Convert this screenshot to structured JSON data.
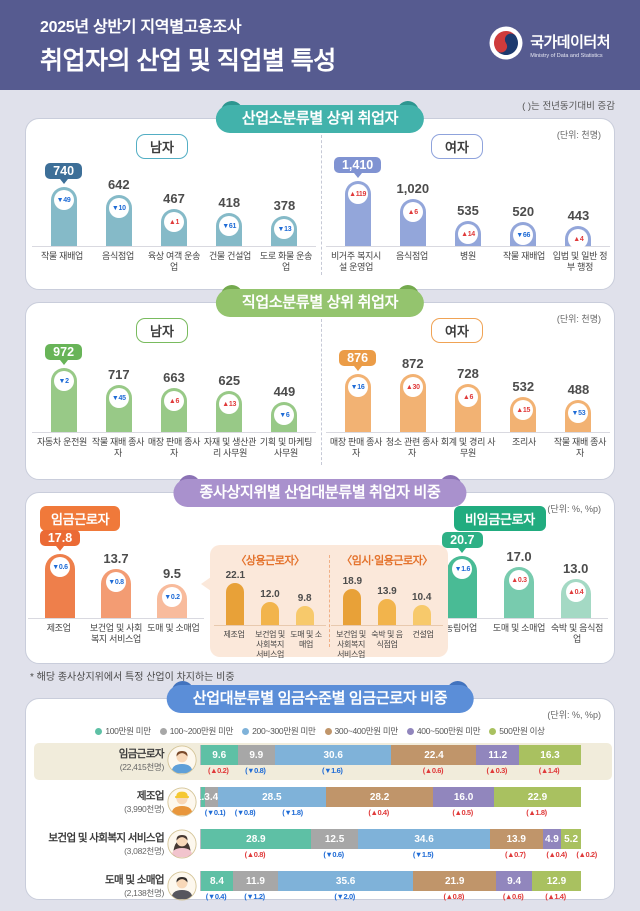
{
  "header": {
    "subtitle": "2025년 상반기 지역별고용조사",
    "title": "취업자의 산업 및 직업별 특성",
    "logo_name": "국가데이터처",
    "logo_subname": "Ministry of Data and Statistics"
  },
  "note": "(  )는 전년동기대비 증감",
  "colors": {
    "up": "#e03a3a",
    "down": "#1e6bd6",
    "header_bg": "#565b90",
    "page_bg": "#e0e1eb",
    "highlight_row": "#f1ecdb",
    "banners": {
      "teal": "#42b2ab",
      "green": "#94c46e",
      "purple": "#a991cd",
      "blue": "#5b8ed8"
    },
    "themes": {
      "men1": {
        "bars": [
          "#85bac8"
        ],
        "badge": "#3d6f98"
      },
      "women1": {
        "bars": [
          "#93a6da"
        ],
        "badge": "#8093d2"
      },
      "men2": {
        "bars": [
          "#98c987"
        ],
        "badge": "#68b458"
      },
      "women2": {
        "bars": [
          "#f2b273"
        ],
        "badge": "#eb9c47"
      },
      "wage": {
        "bars": [
          "#ee7f4b",
          "#f39c73",
          "#f8bb9c"
        ],
        "badge": "#eb6a35"
      },
      "nonwage": {
        "bars": [
          "#49bb95",
          "#78cbae",
          "#a4d9c4"
        ],
        "badge": "#2eb186"
      },
      "sub": {
        "bars": [
          "#e8a138",
          "#f2b44c",
          "#f7c96b"
        ],
        "badge": "#e8a138"
      }
    }
  },
  "chart_data": [
    {
      "id": "industry-top",
      "type": "bar",
      "title": "산업소분류별 상위 취업자",
      "unit": "(단위: 천명)",
      "groups": [
        {
          "label": "남자",
          "theme": "men1",
          "categories": [
            "작물 재배업",
            "음식점업",
            "육상 여객 운송업",
            "건물 건설업",
            "도로 화물 운송업"
          ],
          "values": [
            740,
            642,
            467,
            418,
            378
          ],
          "value_labels": [
            "740",
            "642",
            "467",
            "418",
            "378"
          ],
          "changes": [
            {
              "v": "49",
              "dir": "down"
            },
            {
              "v": "10",
              "dir": "down"
            },
            {
              "v": "1",
              "dir": "up"
            },
            {
              "v": "61",
              "dir": "down"
            },
            {
              "v": "13",
              "dir": "down"
            }
          ],
          "badge_index": 0
        },
        {
          "label": "여자",
          "theme": "women1",
          "categories": [
            "비거주 복지시설 운영업",
            "음식점업",
            "병원",
            "작물 재배업",
            "입법 및 일반 정부 행정"
          ],
          "values": [
            1410,
            1020,
            535,
            520,
            443
          ],
          "value_labels": [
            "1,410",
            "1,020",
            "535",
            "520",
            "443"
          ],
          "changes": [
            {
              "v": "119",
              "dir": "up"
            },
            {
              "v": "6",
              "dir": "up"
            },
            {
              "v": "14",
              "dir": "up"
            },
            {
              "v": "66",
              "dir": "down"
            },
            {
              "v": "4",
              "dir": "up"
            }
          ],
          "badge_index": 0
        }
      ]
    },
    {
      "id": "occupation-top",
      "type": "bar",
      "title": "직업소분류별 상위 취업자",
      "unit": "(단위: 천명)",
      "groups": [
        {
          "label": "남자",
          "theme": "men2",
          "categories": [
            "자동차 운전원",
            "작물 재배 종사자",
            "매장 판매 종사자",
            "자재 및 생산관리 사무원",
            "기획 및 마케팅 사무원"
          ],
          "values": [
            972,
            717,
            663,
            625,
            449
          ],
          "value_labels": [
            "972",
            "717",
            "663",
            "625",
            "449"
          ],
          "changes": [
            {
              "v": "2",
              "dir": "down"
            },
            {
              "v": "45",
              "dir": "down"
            },
            {
              "v": "6",
              "dir": "up"
            },
            {
              "v": "13",
              "dir": "up"
            },
            {
              "v": "6",
              "dir": "down"
            }
          ],
          "badge_index": 0
        },
        {
          "label": "여자",
          "theme": "women2",
          "categories": [
            "매장 판매 종사자",
            "청소 관련 종사자",
            "회계 및 경리 사무원",
            "조리사",
            "작물 재배 종사자"
          ],
          "values": [
            876,
            872,
            728,
            532,
            488
          ],
          "value_labels": [
            "876",
            "872",
            "728",
            "532",
            "488"
          ],
          "changes": [
            {
              "v": "16",
              "dir": "down"
            },
            {
              "v": "30",
              "dir": "up"
            },
            {
              "v": "6",
              "dir": "up"
            },
            {
              "v": "15",
              "dir": "up"
            },
            {
              "v": "53",
              "dir": "down"
            }
          ],
          "badge_index": 0
        }
      ]
    },
    {
      "id": "status-share",
      "type": "bar",
      "title": "종사상지위별 산업대분류별 취업자 비중",
      "unit": "(단위: %, %p)",
      "footnote": "* 해당 종사상지위에서 특정 산업이 차지하는 비중",
      "groups": [
        {
          "label": "임금근로자",
          "theme": "wage",
          "categories": [
            "제조업",
            "보건업 및 사회복지 서비스업",
            "도매 및 소매업"
          ],
          "values": [
            17.8,
            13.7,
            9.5
          ],
          "value_labels": [
            "17.8",
            "13.7",
            "9.5"
          ],
          "changes": [
            {
              "v": "0.6",
              "dir": "down"
            },
            {
              "v": "0.8",
              "dir": "down"
            },
            {
              "v": "0.2",
              "dir": "down"
            }
          ],
          "badge_index": 0
        },
        {
          "label": "비임금근로자",
          "theme": "nonwage",
          "categories": [
            "농림어업",
            "도매 및 소매업",
            "숙박 및 음식점업"
          ],
          "values": [
            20.7,
            17.0,
            13.0
          ],
          "value_labels": [
            "20.7",
            "17.0",
            "13.0"
          ],
          "changes": [
            {
              "v": "1.6",
              "dir": "down"
            },
            {
              "v": "0.3",
              "dir": "up"
            },
            {
              "v": "0.4",
              "dir": "up"
            }
          ],
          "badge_index": 0
        }
      ],
      "sub_panels": [
        {
          "title": "〈상용근로자〉",
          "theme": "sub",
          "categories": [
            "제조업",
            "보건업 및 사회복지 서비스업",
            "도매 및 소매업"
          ],
          "values": [
            22.1,
            12.0,
            9.8
          ],
          "value_labels": [
            "22.1",
            "12.0",
            "9.8"
          ]
        },
        {
          "title": "〈임시·일용근로자〉",
          "theme": "sub",
          "categories": [
            "보건업 및 사회복지 서비스업",
            "숙박 및 음식점업",
            "건설업"
          ],
          "values": [
            18.9,
            13.9,
            10.4
          ],
          "value_labels": [
            "18.9",
            "13.9",
            "10.4"
          ]
        }
      ]
    },
    {
      "id": "wage-level",
      "type": "stacked-bar",
      "title": "산업대분류별 임금수준별 임금근로자 비중",
      "unit": "(단위: %, %p)",
      "legend": [
        "100만원 미만",
        "100~200만원 미만",
        "200~300만원 미만",
        "300~400만원 미만",
        "400~500만원 미만",
        "500만원 이상"
      ],
      "segment_colors": [
        "#5ec0a5",
        "#a7a7a7",
        "#7fb2d9",
        "#c0956a",
        "#9186bd",
        "#a9c160"
      ],
      "rows": [
        {
          "label": "임금근로자",
          "sub": "(22,415천명)",
          "highlight": true,
          "avatar": "person",
          "values": [
            9.6,
            9.9,
            30.6,
            22.4,
            11.2,
            16.3
          ],
          "changes": [
            {
              "v": "0.2",
              "dir": "up"
            },
            {
              "v": "0.8",
              "dir": "down"
            },
            {
              "v": "1.6",
              "dir": "down"
            },
            {
              "v": "0.6",
              "dir": "up"
            },
            {
              "v": "0.3",
              "dir": "up"
            },
            {
              "v": "1.4",
              "dir": "up"
            }
          ]
        },
        {
          "label": "제조업",
          "sub": "(3,990천명)",
          "highlight": false,
          "avatar": "factory-worker",
          "values": [
            1.0,
            3.4,
            28.5,
            28.2,
            16.0,
            22.9
          ],
          "changes": [
            {
              "v": "0.1",
              "dir": "down"
            },
            {
              "v": "0.8",
              "dir": "down"
            },
            {
              "v": "1.8",
              "dir": "down"
            },
            {
              "v": "0.4",
              "dir": "up"
            },
            {
              "v": "0.5",
              "dir": "up"
            },
            {
              "v": "1.8",
              "dir": "up"
            }
          ]
        },
        {
          "label": "보건업 및 사회복지 서비스업",
          "sub": "(3,082천명)",
          "highlight": false,
          "avatar": "care-worker",
          "values": [
            28.9,
            12.5,
            34.6,
            13.9,
            4.9,
            5.2
          ],
          "changes": [
            {
              "v": "0.8",
              "dir": "up"
            },
            {
              "v": "0.6",
              "dir": "down"
            },
            {
              "v": "1.5",
              "dir": "down"
            },
            {
              "v": "0.7",
              "dir": "up"
            },
            {
              "v": "0.4",
              "dir": "up"
            },
            {
              "v": "0.2",
              "dir": "up"
            }
          ]
        },
        {
          "label": "도매 및 소매업",
          "sub": "(2,138천명)",
          "highlight": false,
          "avatar": "sales-worker",
          "values": [
            8.4,
            11.9,
            35.6,
            21.9,
            9.4,
            12.9
          ],
          "changes": [
            {
              "v": "0.4",
              "dir": "down"
            },
            {
              "v": "1.2",
              "dir": "down"
            },
            {
              "v": "2.0",
              "dir": "down"
            },
            {
              "v": "0.8",
              "dir": "up"
            },
            {
              "v": "0.6",
              "dir": "up"
            },
            {
              "v": "1.4",
              "dir": "up"
            }
          ]
        }
      ]
    }
  ]
}
